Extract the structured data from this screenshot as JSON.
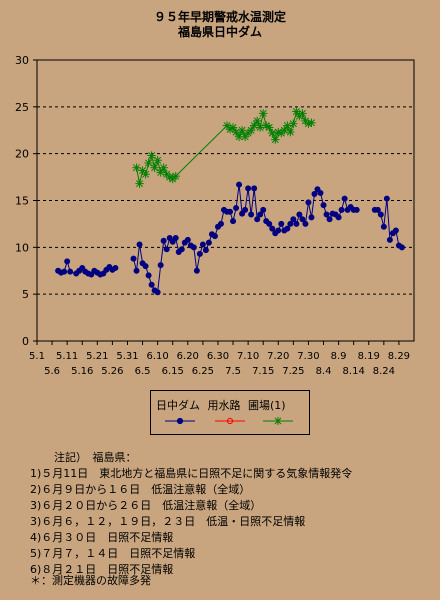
{
  "chart_data": {
    "type": "line",
    "title": [
      "９５年早期警戒水温測定",
      "福島県日中ダム"
    ],
    "xlabel": "",
    "ylabel": "",
    "ylim": [
      0,
      30
    ],
    "yticks": [
      0,
      5,
      10,
      15,
      20,
      25,
      30
    ],
    "xlim": [
      "5.1",
      "9.3"
    ],
    "xticks_top": [
      "5.1",
      "5.11",
      "5.21",
      "5.31",
      "6.10",
      "6.20",
      "6.30",
      "7.10",
      "7.20",
      "7.30",
      "8.9",
      "8.19",
      "8.29"
    ],
    "xticks_bottom": [
      "5.6",
      "5.16",
      "5.26",
      "6.5",
      "6.15",
      "6.25",
      "7.5",
      "7.15",
      "7.25",
      "8.4",
      "8.14",
      "8.24"
    ],
    "grid": "horizontal-dashed",
    "legend_position": "bottom",
    "series": [
      {
        "name": "日中ダム",
        "color": "#000080",
        "marker": "circle-filled",
        "x": [
          "5.8",
          "5.9",
          "5.10",
          "5.11",
          "5.12",
          "5.14",
          "5.15",
          "5.16",
          "5.17",
          "5.18",
          "5.19",
          "5.20",
          "5.21",
          "5.22",
          "5.23",
          "5.24",
          "5.25",
          "5.26",
          "5.27",
          "6.2",
          "6.3",
          "6.4",
          "6.5",
          "6.6",
          "6.7",
          "6.8",
          "6.9",
          "6.10",
          "6.11",
          "6.12",
          "6.13",
          "6.14",
          "6.15",
          "6.16",
          "6.17",
          "6.18",
          "6.19",
          "6.20",
          "6.21",
          "6.22",
          "6.23",
          "6.24",
          "6.25",
          "6.26",
          "6.27",
          "6.28",
          "6.29",
          "6.30",
          "7.1",
          "7.2",
          "7.3",
          "7.4",
          "7.5",
          "7.6",
          "7.7",
          "7.8",
          "7.9",
          "7.10",
          "7.11",
          "7.12",
          "7.13",
          "7.14",
          "7.15",
          "7.16",
          "7.17",
          "7.18",
          "7.19",
          "7.20",
          "7.21",
          "7.22",
          "7.23",
          "7.24",
          "7.25",
          "7.26",
          "7.27",
          "7.28",
          "7.29",
          "7.30",
          "7.31",
          "8.1",
          "8.2",
          "8.3",
          "8.4",
          "8.5",
          "8.6",
          "8.7",
          "8.8",
          "8.9",
          "8.10",
          "8.11",
          "8.12",
          "8.13",
          "8.14",
          "8.15",
          "8.21",
          "8.22",
          "8.23",
          "8.24",
          "8.25",
          "8.26",
          "8.27",
          "8.28",
          "8.29",
          "8.30"
        ],
        "values": [
          7.5,
          7.3,
          7.4,
          8.5,
          7.4,
          7.2,
          7.5,
          7.8,
          7.4,
          7.2,
          7.1,
          7.5,
          7.3,
          7.1,
          7.2,
          7.6,
          7.9,
          7.6,
          7.8,
          8.8,
          7.5,
          10.3,
          8.3,
          8.0,
          7.0,
          6.0,
          5.4,
          5.2,
          8.1,
          10.7,
          9.8,
          11.0,
          10.6,
          11.0,
          9.5,
          9.8,
          10.5,
          10.8,
          10.2,
          10.0,
          7.5,
          9.3,
          10.3,
          9.7,
          10.5,
          11.4,
          11.2,
          12.2,
          12.5,
          14.0,
          13.8,
          13.8,
          12.8,
          14.2,
          16.7,
          13.6,
          14.0,
          16.3,
          13.5,
          16.3,
          13.0,
          13.5,
          14.0,
          12.8,
          12.5,
          12.0,
          11.5,
          11.8,
          12.5,
          11.8,
          12.0,
          12.5,
          13.0,
          12.5,
          13.5,
          13.0,
          12.5,
          14.8,
          13.2,
          15.7,
          16.2,
          15.8,
          14.5,
          13.5,
          13.0,
          13.6,
          13.5,
          13.2,
          14.0,
          15.2,
          14.0,
          14.3,
          14.0,
          14.0,
          14.0,
          14.0,
          13.5,
          12.2,
          15.2,
          10.8,
          11.5,
          11.8,
          10.2,
          10.0
        ]
      },
      {
        "name": "用水路",
        "color": "#ff0000",
        "marker": "circle-open",
        "x": [],
        "values": []
      },
      {
        "name": "圃場(1)",
        "color": "#008000",
        "marker": "asterisk",
        "x": [
          "6.3",
          "6.4",
          "6.5",
          "6.6",
          "6.7",
          "6.8",
          "6.9",
          "6.10",
          "6.11",
          "6.12",
          "6.13",
          "6.14",
          "6.15",
          "6.16",
          "7.3",
          "7.4",
          "7.5",
          "7.6",
          "7.7",
          "7.8",
          "7.9",
          "7.10",
          "7.11",
          "7.12",
          "7.13",
          "7.14",
          "7.15",
          "7.16",
          "7.17",
          "7.18",
          "7.19",
          "7.20",
          "7.21",
          "7.22",
          "7.23",
          "7.24",
          "7.25",
          "7.26",
          "7.27",
          "7.28",
          "7.29",
          "7.30",
          "7.31"
        ],
        "values": [
          18.5,
          16.8,
          18.2,
          17.8,
          19.0,
          19.8,
          18.5,
          19.3,
          18.0,
          18.5,
          17.8,
          17.5,
          17.3,
          17.6,
          23.0,
          22.6,
          22.8,
          22.3,
          21.8,
          22.5,
          21.8,
          22.2,
          22.5,
          23.0,
          23.5,
          22.8,
          24.3,
          23.0,
          22.8,
          22.2,
          21.5,
          22.3,
          22.2,
          22.5,
          23.0,
          22.3,
          23.2,
          24.5,
          24.0,
          24.3,
          23.5,
          23.2,
          23.3
        ]
      }
    ]
  },
  "notes": {
    "header": "注記）　福島県：",
    "items": [
      "1)５月11日　東北地方と福島県に日照不足に関する気象情報発令",
      "2)６月９日から１６日　低温注意報（全域）",
      "3)６月２０日から２６日　低温注意報（全域）",
      "3)６月６，１２，１９日，２３日　低温・日照不足情報",
      "4)６月３０日　日照不足情報",
      "5)７月７，１４日　日照不足情報",
      "6)８月２１日　日照不足情報"
    ],
    "footnote": "＊：測定機器の故障多発"
  }
}
